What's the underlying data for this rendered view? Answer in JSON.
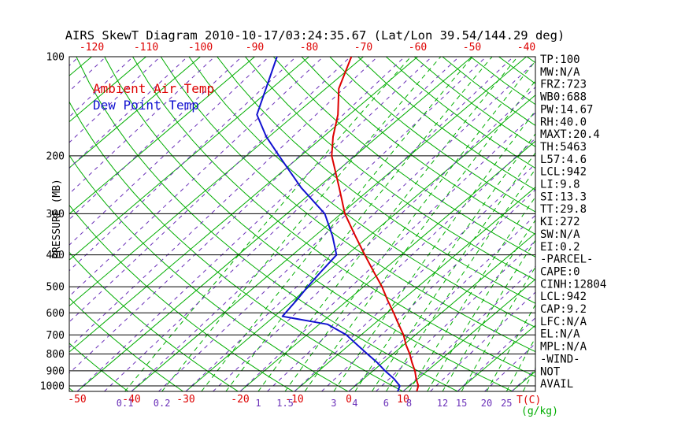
{
  "title": "AIRS SkewT Diagram 2010-10-17/03:24:35.67 (Lat/Lon 39.54/144.29 deg)",
  "legend": {
    "ambient": "Ambient Air Temp",
    "dewpoint": "Dew Point Temp"
  },
  "axes": {
    "pressure_label": "PRESSURE (MB)",
    "temp_unit_label": "T(C)",
    "mixing_unit_label": "(g/kg)",
    "pressure_ticks": [
      100,
      200,
      300,
      400,
      500,
      600,
      700,
      800,
      900,
      1000
    ],
    "top_temp_ticks": [
      -120,
      -110,
      -100,
      -90,
      -80,
      -70,
      -60,
      -50,
      -40
    ],
    "bottom_temp_ticks": [
      -50,
      -40,
      -30,
      -20,
      -10,
      0,
      10
    ],
    "mixing_ratio_tick_labels": [
      0.1,
      0.2,
      1,
      1.5,
      3,
      4,
      6,
      8,
      12,
      15,
      20,
      25
    ]
  },
  "stats_panel": [
    "TP:100",
    "MW:N/A",
    "FRZ:723",
    "WB0:688",
    "PW:14.67",
    "RH:40.0",
    "MAXT:20.4",
    "TH:5463",
    "L57:4.6",
    "LCL:942",
    "LI:9.8",
    "SI:13.3",
    "TT:29.8",
    "KI:272",
    "SW:N/A",
    "EI:0.2",
    "-PARCEL-",
    "CAPE:0",
    "CINH:12804",
    "LCL:942",
    "CAP:9.2",
    "LFC:N/A",
    "EL:N/A",
    "MPL:N/A",
    "-WIND-",
    "NOT",
    "AVAIL"
  ],
  "colors": {
    "ambient": "#dd0000",
    "dewpoint": "#1111d0",
    "isotherm": "#00ad00",
    "mixing": "#00ad00",
    "moist": "#6a2fb8",
    "grid": "#000000"
  },
  "chart_data": {
    "type": "line",
    "variant": "skewt-log-p",
    "title": "AIRS SkewT Diagram 2010-10-17/03:24:35.67 (Lat/Lon 39.54/144.29 deg)",
    "x_axis": {
      "label": "T(C)",
      "units": "deg C",
      "top_row_ticks": [
        -120,
        -110,
        -100,
        -90,
        -80,
        -70,
        -60,
        -50,
        -40
      ],
      "bottom_row_ticks": [
        -50,
        -40,
        -30,
        -20,
        -10,
        0,
        10
      ]
    },
    "y_axis": {
      "label": "PRESSURE (MB)",
      "scale": "log",
      "range": [
        100,
        1039
      ],
      "ticks": [
        100,
        200,
        300,
        400,
        500,
        600,
        700,
        800,
        900,
        1000
      ]
    },
    "mixing_ratio_axis": {
      "units": "g/kg",
      "labeled_values": [
        0.1,
        0.2,
        1,
        1.5,
        3,
        4,
        6,
        8,
        12,
        15,
        20,
        25
      ]
    },
    "series": [
      {
        "name": "Ambient Air Temp",
        "color": "#dd0000",
        "points_p_t": [
          [
            1039,
            12.5
          ],
          [
            1000,
            11.6
          ],
          [
            950,
            9.6
          ],
          [
            900,
            7.7
          ],
          [
            850,
            5.4
          ],
          [
            800,
            3.1
          ],
          [
            750,
            0.4
          ],
          [
            700,
            -2.2
          ],
          [
            650,
            -5.4
          ],
          [
            600,
            -8.8
          ],
          [
            550,
            -12.6
          ],
          [
            500,
            -16.6
          ],
          [
            450,
            -21.4
          ],
          [
            400,
            -26.7
          ],
          [
            350,
            -32.6
          ],
          [
            300,
            -39.3
          ],
          [
            250,
            -46.0
          ],
          [
            200,
            -54.3
          ],
          [
            175,
            -58.2
          ],
          [
            150,
            -62.1
          ],
          [
            125,
            -67.6
          ],
          [
            100,
            -72.2
          ]
        ]
      },
      {
        "name": "Dew Point Temp",
        "color": "#1111d0",
        "points_p_t": [
          [
            1039,
            9.0
          ],
          [
            1000,
            8.2
          ],
          [
            950,
            5.5
          ],
          [
            900,
            2.2
          ],
          [
            850,
            -1.0
          ],
          [
            800,
            -4.7
          ],
          [
            750,
            -8.6
          ],
          [
            700,
            -12.7
          ],
          [
            650,
            -18.5
          ],
          [
            615,
            -28.5
          ],
          [
            550,
            -29.4
          ],
          [
            500,
            -30.3
          ],
          [
            450,
            -31.1
          ],
          [
            400,
            -31.9
          ],
          [
            350,
            -36.8
          ],
          [
            300,
            -43.0
          ],
          [
            250,
            -53.0
          ],
          [
            200,
            -64.0
          ],
          [
            175,
            -70.5
          ],
          [
            150,
            -77.0
          ],
          [
            125,
            -81.0
          ],
          [
            100,
            -85.9
          ]
        ]
      }
    ],
    "background": {
      "isotherms_c": {
        "min": -130,
        "max": 40,
        "step": 10
      },
      "dry_adiabats_k": {
        "min": 220,
        "max": 450,
        "step": 10
      },
      "mixing_ratio_g_kg": [
        0.1,
        0.2,
        0.4,
        0.6,
        1,
        1.5,
        2,
        3,
        4,
        5,
        6,
        8,
        10,
        12,
        15,
        20,
        25,
        30,
        35,
        40
      ],
      "moist_adiabat_spacing_c": 5
    }
  }
}
